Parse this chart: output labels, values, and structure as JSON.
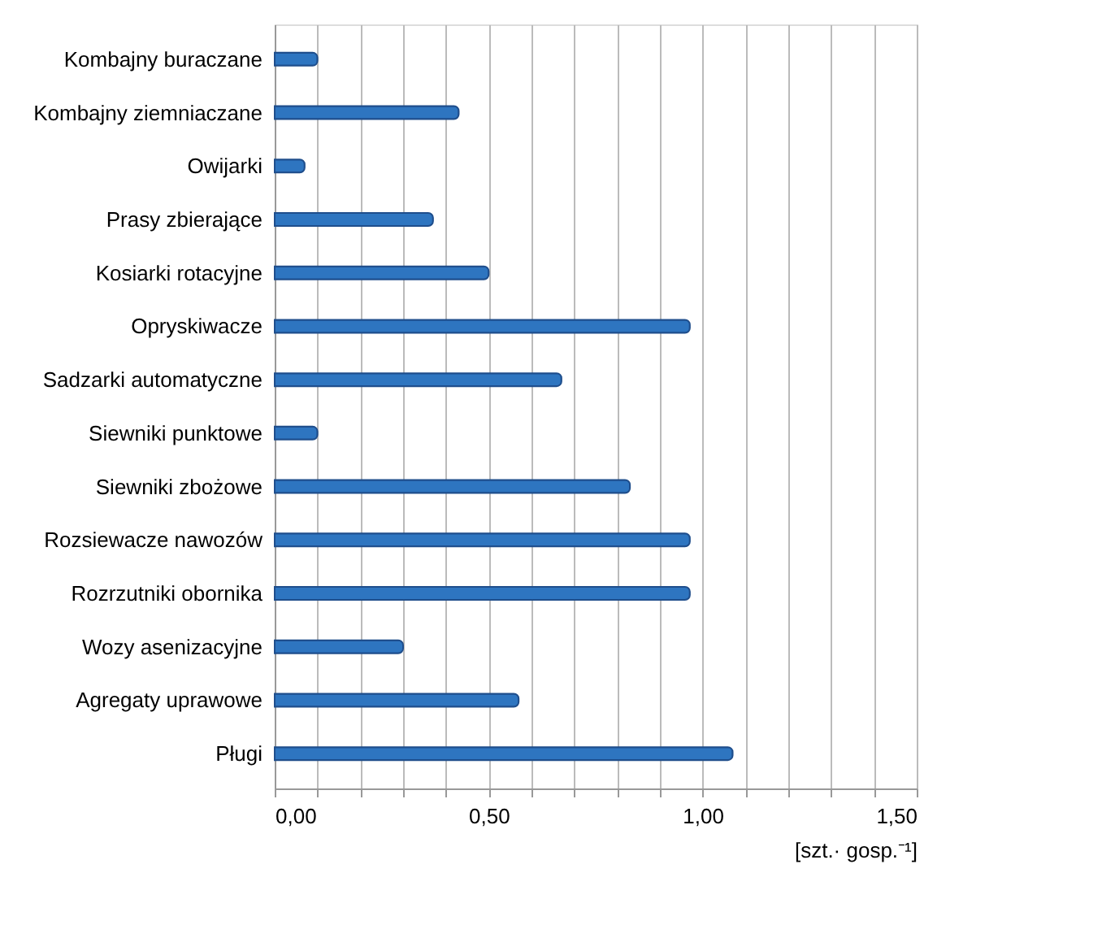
{
  "chart_data": {
    "type": "bar",
    "orientation": "horizontal",
    "xlabel": "[szt.· gosp.⁻¹]",
    "categories": [
      "Kombajny buraczane",
      "Kombajny ziemniaczane",
      "Owijarki",
      "Prasy zbierające",
      "Kosiarki rotacyjne",
      "Opryskiwacze",
      "Sadzarki automatyczne",
      "Siewniki punktowe",
      "Siewniki zbożowe",
      "Rozsiewacze nawozów",
      "Rozrzutniki obornika",
      "Wozy asenizacyjne",
      "Agregaty uprawowe",
      "Pługi"
    ],
    "values": [
      0.1,
      0.43,
      0.07,
      0.37,
      0.5,
      0.97,
      0.67,
      0.1,
      0.83,
      0.97,
      0.97,
      0.3,
      0.57,
      1.07
    ],
    "color": "#2e75c0",
    "xlim": [
      0,
      1.5
    ],
    "xticks": [
      {
        "value": 0,
        "label": "0,00"
      },
      {
        "value": 0.1,
        "label": null
      },
      {
        "value": 0.2,
        "label": null
      },
      {
        "value": 0.3,
        "label": null
      },
      {
        "value": 0.4,
        "label": null
      },
      {
        "value": 0.5,
        "label": "0,50"
      },
      {
        "value": 0.6,
        "label": null
      },
      {
        "value": 0.7,
        "label": null
      },
      {
        "value": 0.8,
        "label": null
      },
      {
        "value": 0.9,
        "label": null
      },
      {
        "value": 1.0,
        "label": "1,00"
      },
      {
        "value": 1.1,
        "label": null
      },
      {
        "value": 1.2,
        "label": null
      },
      {
        "value": 1.3,
        "label": null
      },
      {
        "value": 1.4,
        "label": null
      },
      {
        "value": 1.5,
        "label": "1,50"
      }
    ],
    "grid": "x"
  }
}
